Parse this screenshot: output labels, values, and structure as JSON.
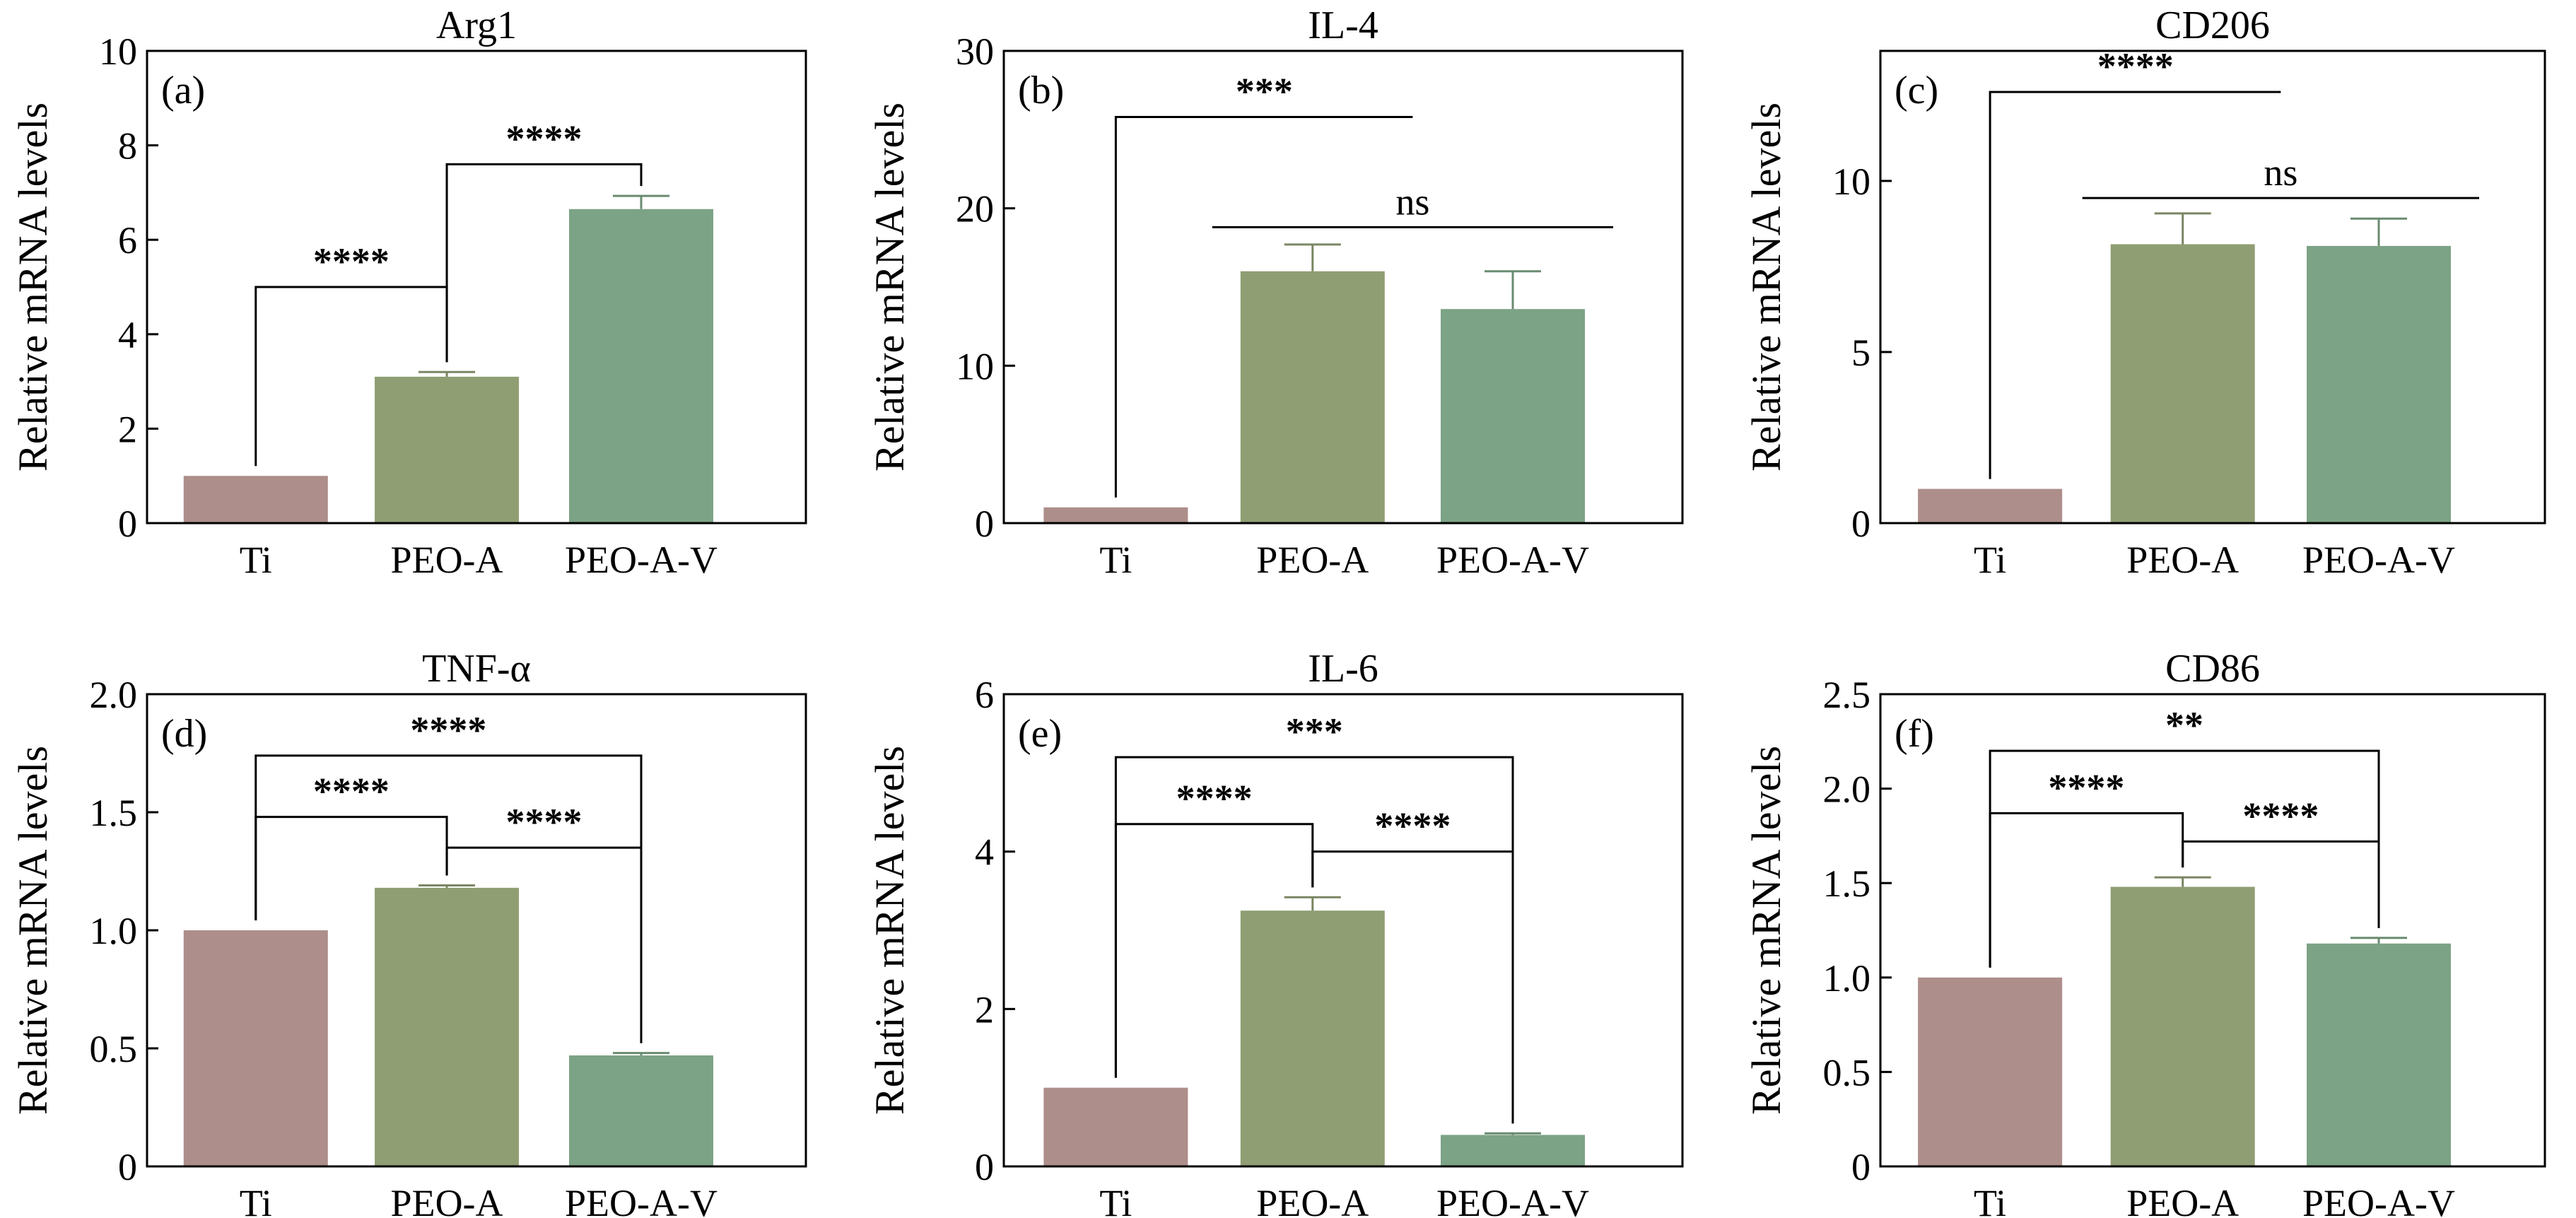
{
  "colors": {
    "Ti": "#ad8e8a",
    "PEO-A": "#909e73",
    "PEO-A-V": "#7ca385"
  },
  "chart_data": [
    {
      "type": "bar",
      "panel": "(a)",
      "title": "Arg1",
      "ylabel": "Relative mRNA levels",
      "categories": [
        "Ti",
        "PEO-A",
        "PEO-A-V"
      ],
      "values": [
        1.0,
        3.1,
        6.65
      ],
      "errors": [
        0.0,
        0.1,
        0.28
      ],
      "ylim": [
        0,
        10
      ],
      "yticks": [
        0,
        2,
        4,
        6,
        8,
        10
      ],
      "ytick_labels": [
        "0",
        "2",
        "4",
        "6",
        "8",
        "10"
      ],
      "significance": [
        {
          "from": 0,
          "to": 1,
          "y": 5.0,
          "label": "****",
          "style": "bracket"
        },
        {
          "from": 1,
          "to": 2,
          "y": 7.6,
          "label": "****",
          "style": "bracket"
        }
      ]
    },
    {
      "type": "bar",
      "panel": "(b)",
      "title": "IL-4",
      "ylabel": "Relative mRNA levels",
      "categories": [
        "Ti",
        "PEO-A",
        "PEO-A-V"
      ],
      "values": [
        1.0,
        16.0,
        13.6
      ],
      "errors": [
        0.0,
        1.7,
        2.4
      ],
      "ylim": [
        0,
        30
      ],
      "yticks": [
        0,
        10,
        20,
        30
      ],
      "ytick_labels": [
        "0",
        "10",
        "20",
        "30"
      ],
      "significance": [
        {
          "from": 0,
          "to": "mid12",
          "y": 25.8,
          "label": "***",
          "style": "bracket"
        },
        {
          "from": 1,
          "to": 2,
          "y": 18.8,
          "label": "ns",
          "style": "line"
        }
      ]
    },
    {
      "type": "bar",
      "panel": "(c)",
      "title": "CD206",
      "ylabel": "Relative mRNA levels",
      "categories": [
        "Ti",
        "PEO-A",
        "PEO-A-V"
      ],
      "values": [
        1.0,
        8.15,
        8.1
      ],
      "errors": [
        0.0,
        0.9,
        0.8
      ],
      "ylim": [
        0,
        13.8
      ],
      "yticks": [
        0,
        5,
        10
      ],
      "ytick_labels": [
        "0",
        "5",
        "10"
      ],
      "significance": [
        {
          "from": 0,
          "to": "mid12",
          "y": 12.6,
          "label": "****",
          "style": "bracket"
        },
        {
          "from": 1,
          "to": 2,
          "y": 9.5,
          "label": "ns",
          "style": "line"
        }
      ]
    },
    {
      "type": "bar",
      "panel": "(d)",
      "title": "TNF-α",
      "ylabel": "Relative mRNA levels",
      "categories": [
        "Ti",
        "PEO-A",
        "PEO-A-V"
      ],
      "values": [
        1.0,
        1.18,
        0.47
      ],
      "errors": [
        0.0,
        0.01,
        0.01
      ],
      "ylim": [
        0,
        2.0
      ],
      "yticks": [
        0,
        0.5,
        1.0,
        1.5,
        2.0
      ],
      "ytick_labels": [
        "0",
        "0.5",
        "1.0",
        "1.5",
        "2.0"
      ],
      "significance": [
        {
          "from": 0,
          "to": 1,
          "y": 1.48,
          "label": "****",
          "style": "bracket"
        },
        {
          "from": 1,
          "to": 2,
          "y": 1.35,
          "label": "****",
          "style": "bracket"
        },
        {
          "from": 0,
          "to": 2,
          "y": 1.74,
          "label": "****",
          "style": "bracket"
        }
      ]
    },
    {
      "type": "bar",
      "panel": "(e)",
      "title": "IL-6",
      "ylabel": "Relative mRNA levels",
      "categories": [
        "Ti",
        "PEO-A",
        "PEO-A-V"
      ],
      "values": [
        1.0,
        3.25,
        0.4
      ],
      "errors": [
        0.0,
        0.17,
        0.02
      ],
      "ylim": [
        0,
        6
      ],
      "yticks": [
        0,
        2,
        4,
        6
      ],
      "ytick_labels": [
        "0",
        "2",
        "4",
        "6"
      ],
      "significance": [
        {
          "from": 0,
          "to": 1,
          "y": 4.35,
          "label": "****",
          "style": "bracket"
        },
        {
          "from": 1,
          "to": 2,
          "y": 4.0,
          "label": "****",
          "style": "bracket"
        },
        {
          "from": 0,
          "to": 2,
          "y": 5.2,
          "label": "***",
          "style": "bracket"
        }
      ]
    },
    {
      "type": "bar",
      "panel": "(f)",
      "title": "CD86",
      "ylabel": "Relative mRNA levels",
      "categories": [
        "Ti",
        "PEO-A",
        "PEO-A-V"
      ],
      "values": [
        1.0,
        1.48,
        1.18
      ],
      "errors": [
        0.0,
        0.05,
        0.03
      ],
      "ylim": [
        0,
        2.5
      ],
      "yticks": [
        0,
        0.5,
        1.0,
        1.5,
        2.0,
        2.5
      ],
      "ytick_labels": [
        "0",
        "0.5",
        "1.0",
        "1.5",
        "2.0",
        "2.5"
      ],
      "significance": [
        {
          "from": 0,
          "to": 1,
          "y": 1.87,
          "label": "****",
          "style": "bracket"
        },
        {
          "from": 1,
          "to": 2,
          "y": 1.72,
          "label": "****",
          "style": "bracket"
        },
        {
          "from": 0,
          "to": 2,
          "y": 2.2,
          "label": "**",
          "style": "bracket"
        }
      ]
    }
  ]
}
